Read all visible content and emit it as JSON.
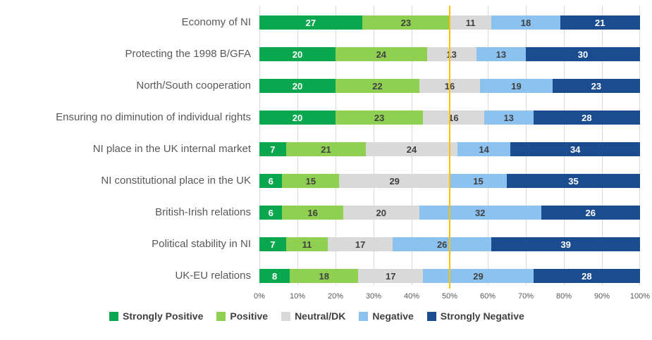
{
  "colors": {
    "background": "#FFFFFF",
    "gridline": "#D9D9D9",
    "axis_text": "#595959",
    "category_text": "#595959",
    "legend_text": "#404040",
    "reference_line": "#FFC000",
    "strongly_positive": "#0AA74F",
    "positive": "#8FD052",
    "neutral_dk": "#D9D9D9",
    "negative": "#8CC2EF",
    "strongly_negative": "#1A4C8F"
  },
  "chart_data": {
    "type": "bar",
    "orientation": "horizontal",
    "stacked": true,
    "stacked_total": 100,
    "title": "",
    "xlabel": "",
    "ylabel": "",
    "grid": true,
    "legend_position": "bottom",
    "categories": [
      "Economy of NI",
      "Protecting the 1998 B/GFA",
      "North/South cooperation",
      "Ensuring no diminution of individual rights",
      "NI place in the UK internal market",
      "NI constitutional place in the UK",
      "British-Irish relations",
      "Political stability in NI",
      "UK-EU relations"
    ],
    "series": [
      {
        "name": "Strongly Positive",
        "color": "#0AA74F",
        "label_color": "#FFFFFF",
        "values": [
          27,
          20,
          20,
          20,
          7,
          6,
          6,
          7,
          8
        ]
      },
      {
        "name": "Positive",
        "color": "#8FD052",
        "label_color": "#404040",
        "values": [
          23,
          24,
          22,
          23,
          21,
          15,
          16,
          11,
          18
        ]
      },
      {
        "name": "Neutral/DK",
        "color": "#D9D9D9",
        "label_color": "#404040",
        "values": [
          11,
          13,
          16,
          16,
          24,
          29,
          20,
          17,
          17
        ]
      },
      {
        "name": "Negative",
        "color": "#8CC2EF",
        "label_color": "#404040",
        "values": [
          18,
          13,
          19,
          13,
          14,
          15,
          32,
          26,
          29
        ]
      },
      {
        "name": "Strongly Negative",
        "color": "#1A4C8F",
        "label_color": "#FFFFFF",
        "values": [
          21,
          30,
          23,
          28,
          34,
          35,
          26,
          39,
          28
        ]
      }
    ],
    "x_axis": {
      "min": 0,
      "max": 100,
      "ticks": [
        "0%",
        "10%",
        "20%",
        "30%",
        "40%",
        "50%",
        "60%",
        "70%",
        "80%",
        "90%",
        "100%"
      ]
    },
    "reference_line": {
      "value": 50,
      "color": "#FFC000"
    },
    "legend": [
      "Strongly Positive",
      "Positive",
      "Neutral/DK",
      "Negative",
      "Strongly Negative"
    ]
  }
}
